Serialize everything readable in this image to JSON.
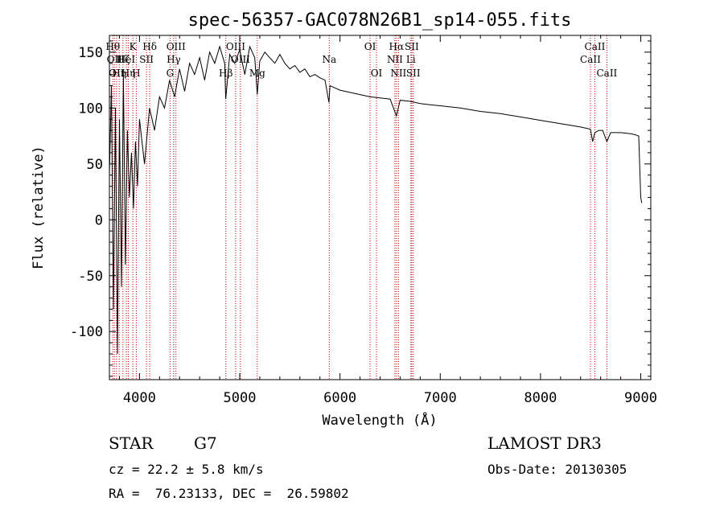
{
  "chart_data": {
    "type": "line",
    "title": "spec-56357-GAC078N26B1_sp14-055.fits",
    "xlabel": "Wavelength (Å)",
    "ylabel": "Flux (relative)",
    "xlim": [
      3700,
      9100
    ],
    "ylim": [
      -143,
      165
    ],
    "xticks": [
      4000,
      5000,
      6000,
      7000,
      8000,
      9000
    ],
    "yticks": [
      -100,
      -50,
      0,
      50,
      100,
      150
    ],
    "series": [
      {
        "name": "spectrum",
        "x": [
          3700,
          3720,
          3740,
          3760,
          3780,
          3800,
          3820,
          3840,
          3860,
          3880,
          3900,
          3920,
          3940,
          3960,
          3980,
          4000,
          4050,
          4100,
          4150,
          4200,
          4250,
          4300,
          4350,
          4400,
          4450,
          4500,
          4550,
          4600,
          4650,
          4700,
          4750,
          4800,
          4850,
          4860,
          4900,
          4950,
          5000,
          5050,
          5100,
          5150,
          5175,
          5200,
          5250,
          5300,
          5350,
          5400,
          5450,
          5500,
          5550,
          5600,
          5650,
          5700,
          5750,
          5800,
          5850,
          5890,
          5900,
          5950,
          6000,
          6100,
          6200,
          6300,
          6400,
          6500,
          6563,
          6600,
          6700,
          6800,
          6900,
          7000,
          7200,
          7400,
          7600,
          7800,
          8000,
          8200,
          8400,
          8498,
          8520,
          8542,
          8580,
          8620,
          8662,
          8700,
          8800,
          8900,
          8950,
          8980,
          9000,
          9010
        ],
        "y": [
          40,
          120,
          -80,
          100,
          -120,
          90,
          -60,
          130,
          -40,
          80,
          20,
          60,
          10,
          70,
          30,
          90,
          50,
          100,
          80,
          110,
          100,
          125,
          110,
          135,
          115,
          140,
          130,
          145,
          125,
          150,
          140,
          155,
          140,
          108,
          148,
          140,
          152,
          130,
          155,
          145,
          112,
          142,
          150,
          145,
          140,
          148,
          140,
          135,
          138,
          132,
          135,
          128,
          130,
          127,
          125,
          105,
          120,
          118,
          116,
          114,
          112,
          110,
          109,
          108,
          93,
          107,
          106,
          104,
          103,
          102,
          100,
          97,
          95,
          92,
          89,
          86,
          83,
          81,
          70,
          78,
          80,
          80,
          70,
          78,
          78,
          77,
          76,
          75,
          20,
          15
        ]
      }
    ],
    "lines": [
      {
        "wl": 3734,
        "label": "Hθ",
        "row": 0
      },
      {
        "wl": 3750,
        "label": "OII",
        "row": 1
      },
      {
        "wl": 3771,
        "label": "OII",
        "row": 2
      },
      {
        "wl": 3798,
        "label": "Hη",
        "row": 2
      },
      {
        "wl": 3835,
        "label": "Hζ",
        "row": 1
      },
      {
        "wl": 3869,
        "label": "HeI",
        "row": 1
      },
      {
        "wl": 3889,
        "label": "Hη",
        "row": 2
      },
      {
        "wl": 3934,
        "label": "K",
        "row": 0
      },
      {
        "wl": 3968,
        "label": "H",
        "row": 2
      },
      {
        "wl": 4070,
        "label": "SII",
        "row": 1
      },
      {
        "wl": 4102,
        "label": "Hδ",
        "row": 0
      },
      {
        "wl": 4305,
        "label": "G",
        "row": 2
      },
      {
        "wl": 4341,
        "label": "Hγ",
        "row": 1
      },
      {
        "wl": 4364,
        "label": "OIII",
        "row": 0
      },
      {
        "wl": 4861,
        "label": "Hβ",
        "row": 2
      },
      {
        "wl": 4959,
        "label": "OIII",
        "row": 0
      },
      {
        "wl": 5007,
        "label": "OIII",
        "row": 1
      },
      {
        "wl": 5175,
        "label": "Mg",
        "row": 2
      },
      {
        "wl": 5893,
        "label": "Na",
        "row": 1
      },
      {
        "wl": 6300,
        "label": "OI",
        "row": 0
      },
      {
        "wl": 6364,
        "label": "OI",
        "row": 2
      },
      {
        "wl": 6548,
        "label": "NII",
        "row": 1
      },
      {
        "wl": 6563,
        "label": "Hα",
        "row": 0
      },
      {
        "wl": 6583,
        "label": "NII",
        "row": 2
      },
      {
        "wl": 6707,
        "label": "Li",
        "row": 1
      },
      {
        "wl": 6716,
        "label": "SII",
        "row": 0
      },
      {
        "wl": 6731,
        "label": "SII",
        "row": 2
      },
      {
        "wl": 8498,
        "label": "CaII",
        "row": 1
      },
      {
        "wl": 8542,
        "label": "CaII",
        "row": 0
      },
      {
        "wl": 8662,
        "label": "CaII",
        "row": 2
      }
    ]
  },
  "info": {
    "object_class": "STAR",
    "subclass": "G7",
    "survey": "LAMOST DR3",
    "redshift": "cz = 22.2 ± 5.8 km/s",
    "obs_date": "Obs-Date: 20130305",
    "coords": "RA =  76.23133, DEC =  26.59802"
  },
  "colors": {
    "spectrum": "#000000",
    "line_marker": "#cc0000",
    "axes": "#000000"
  }
}
